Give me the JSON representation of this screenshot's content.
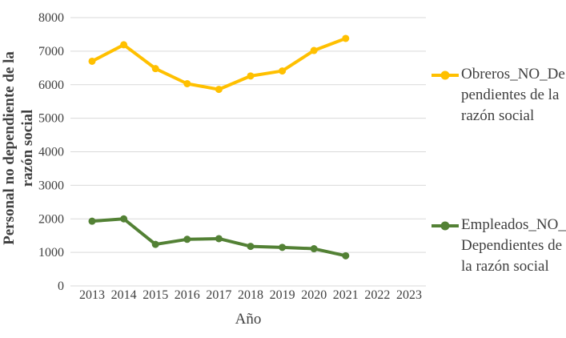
{
  "chart_data": {
    "type": "line",
    "title": "",
    "xlabel": "Año",
    "ylabel": "Personal no dependiente de la razón social",
    "ylabel_lines": [
      "Personal no dependiente de la",
      "razón social"
    ],
    "x_ticks": [
      "2013",
      "2014",
      "2015",
      "2016",
      "2017",
      "2018",
      "2019",
      "2020",
      "2021",
      "2022",
      "2023"
    ],
    "x": [
      2013,
      2014,
      2015,
      2016,
      2017,
      2018,
      2019,
      2020,
      2021
    ],
    "yticks": [
      0,
      1000,
      2000,
      3000,
      4000,
      5000,
      6000,
      7000,
      8000
    ],
    "ylim": [
      0,
      8000
    ],
    "grid": "horizontal",
    "legend_position": "right",
    "series": [
      {
        "name": "Obreros_NO_Dependientes de la razón social",
        "legend_lines": [
          "Obreros_NO_De",
          "pendientes de la",
          "razón social"
        ],
        "color": "#FFC000",
        "values": [
          6700,
          7190,
          6480,
          6030,
          5860,
          6260,
          6410,
          7020,
          7380
        ]
      },
      {
        "name": "Empleados_NO_Dependientes de la razón social",
        "legend_lines": [
          "Empleados_NO_",
          "Dependientes de",
          "la razón social"
        ],
        "color": "#538135",
        "values": [
          1930,
          2000,
          1240,
          1390,
          1410,
          1180,
          1150,
          1110,
          900
        ]
      }
    ],
    "colors": {
      "gridline": "#D9D9D9",
      "text": "#404040",
      "background": "#FFFFFF"
    }
  }
}
